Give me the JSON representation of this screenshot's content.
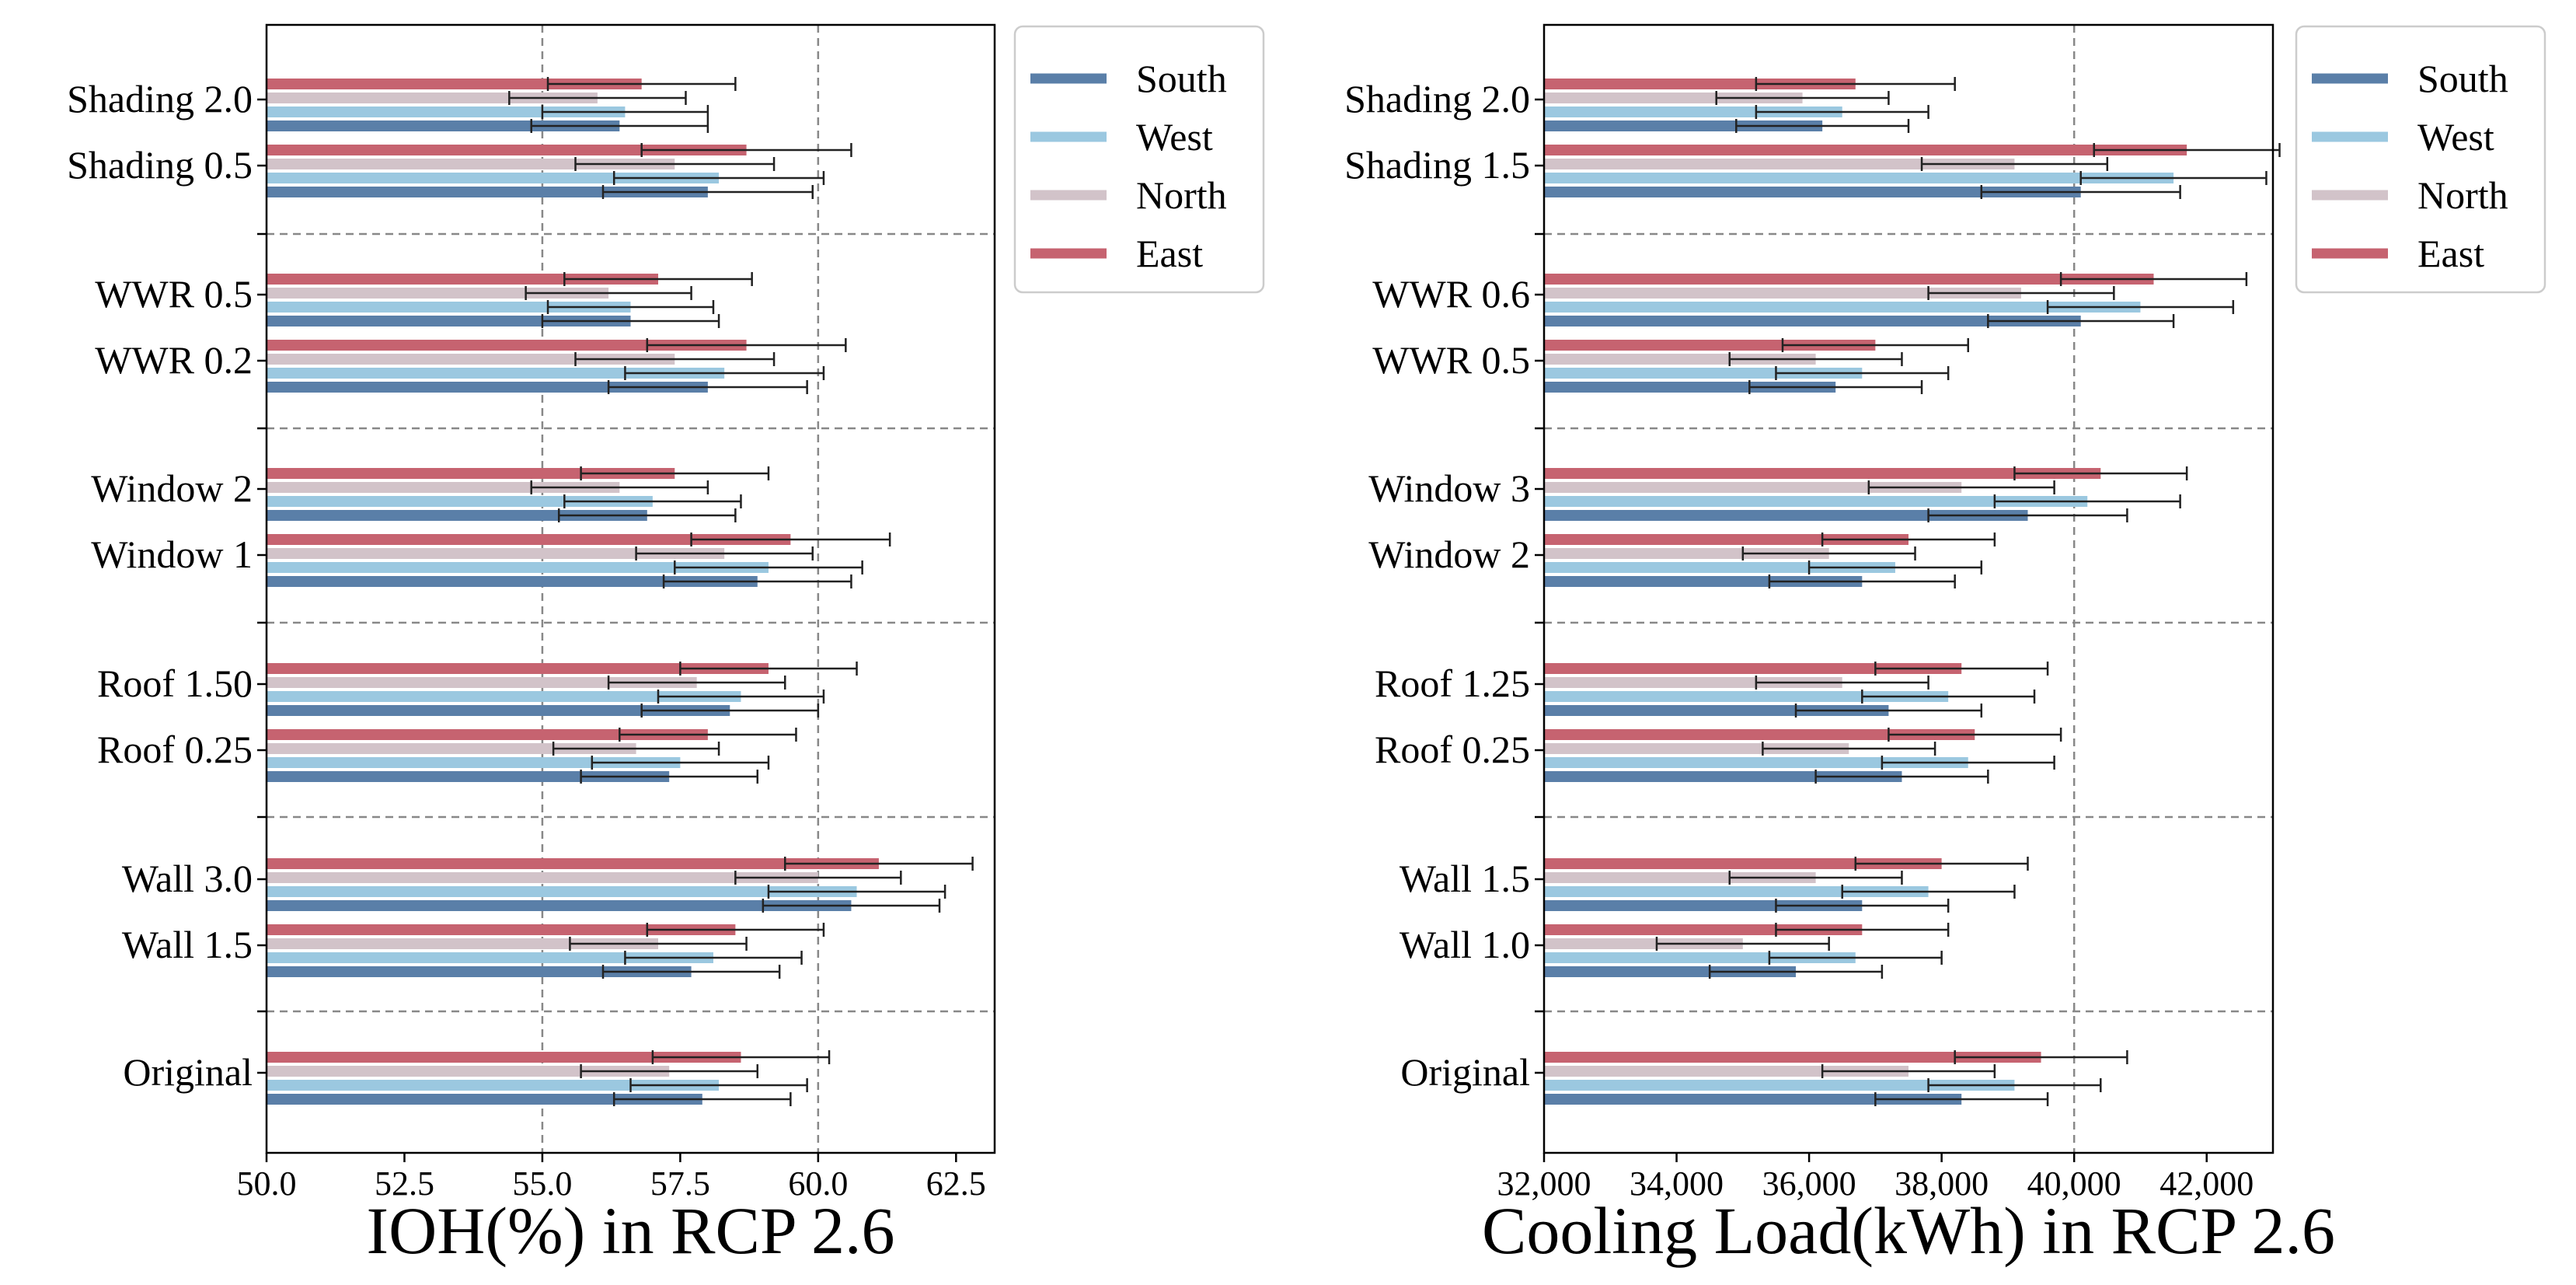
{
  "colors": {
    "South": "#5a7fa8",
    "West": "#9bc8e0",
    "North": "#d2c3c9",
    "East": "#c66370",
    "grid": "#888888",
    "errorbar": "#222222"
  },
  "chart_data": [
    {
      "type": "bar",
      "orientation": "horizontal",
      "title": "",
      "xlabel": "IOH(%) in RCP 2.6",
      "ylabel": "",
      "xlim": [
        50.0,
        63.2
      ],
      "xticks": [
        50.0,
        52.5,
        55.0,
        57.5,
        60.0,
        62.5
      ],
      "xtick_labels": [
        "50.0",
        "52.5",
        "55.0",
        "57.5",
        "60.0",
        "62.5"
      ],
      "vlines": [
        55.0,
        60.0
      ],
      "legend": [
        "South",
        "West",
        "North",
        "East"
      ],
      "legend_position": "top-right (outside)",
      "groups": [
        {
          "categories": [
            "Shading 2.0",
            "Shading 0.5"
          ],
          "series": {
            "South": [
              56.4,
              58.0
            ],
            "West": [
              56.5,
              58.2
            ],
            "North": [
              56.0,
              57.4
            ],
            "East": [
              56.8,
              58.7
            ]
          },
          "errors": {
            "South": [
              1.6,
              1.9
            ],
            "West": [
              1.5,
              1.9
            ],
            "North": [
              1.6,
              1.8
            ],
            "East": [
              1.7,
              1.9
            ]
          }
        },
        {
          "categories": [
            "WWR 0.5",
            "WWR 0.2"
          ],
          "series": {
            "South": [
              56.6,
              58.0
            ],
            "West": [
              56.6,
              58.3
            ],
            "North": [
              56.2,
              57.4
            ],
            "East": [
              57.1,
              58.7
            ]
          },
          "errors": {
            "South": [
              1.6,
              1.8
            ],
            "West": [
              1.5,
              1.8
            ],
            "North": [
              1.5,
              1.8
            ],
            "East": [
              1.7,
              1.8
            ]
          }
        },
        {
          "categories": [
            "Window 2",
            "Window 1"
          ],
          "series": {
            "South": [
              56.9,
              58.9
            ],
            "West": [
              57.0,
              59.1
            ],
            "North": [
              56.4,
              58.3
            ],
            "East": [
              57.4,
              59.5
            ]
          },
          "errors": {
            "South": [
              1.6,
              1.7
            ],
            "West": [
              1.6,
              1.7
            ],
            "North": [
              1.6,
              1.6
            ],
            "East": [
              1.7,
              1.8
            ]
          }
        },
        {
          "categories": [
            "Roof 1.50",
            "Roof 0.25"
          ],
          "series": {
            "South": [
              58.4,
              57.3
            ],
            "West": [
              58.6,
              57.5
            ],
            "North": [
              57.8,
              56.7
            ],
            "East": [
              59.1,
              58.0
            ]
          },
          "errors": {
            "South": [
              1.6,
              1.6
            ],
            "West": [
              1.5,
              1.6
            ],
            "North": [
              1.6,
              1.5
            ],
            "East": [
              1.6,
              1.6
            ]
          }
        },
        {
          "categories": [
            "Wall 3.0",
            "Wall 1.5"
          ],
          "series": {
            "South": [
              60.6,
              57.7
            ],
            "West": [
              60.7,
              58.1
            ],
            "North": [
              60.0,
              57.1
            ],
            "East": [
              61.1,
              58.5
            ]
          },
          "errors": {
            "South": [
              1.6,
              1.6
            ],
            "West": [
              1.6,
              1.6
            ],
            "North": [
              1.5,
              1.6
            ],
            "East": [
              1.7,
              1.6
            ]
          }
        },
        {
          "categories": [
            "Original"
          ],
          "series": {
            "South": [
              57.9
            ],
            "West": [
              58.2
            ],
            "North": [
              57.3
            ],
            "East": [
              58.6
            ]
          },
          "errors": {
            "South": [
              1.6
            ],
            "West": [
              1.6
            ],
            "North": [
              1.6
            ],
            "East": [
              1.6
            ]
          }
        }
      ]
    },
    {
      "type": "bar",
      "orientation": "horizontal",
      "title": "",
      "xlabel": "Cooling Load(kWh) in RCP 2.6",
      "ylabel": "",
      "xlim": [
        32000,
        43000
      ],
      "xticks": [
        32000,
        34000,
        36000,
        38000,
        40000,
        42000
      ],
      "xtick_labels": [
        "32,000",
        "34,000",
        "36,000",
        "38,000",
        "40,000",
        "42,000"
      ],
      "vlines": [
        40000
      ],
      "legend": [
        "South",
        "West",
        "North",
        "East"
      ],
      "legend_position": "top-right (outside)",
      "groups": [
        {
          "categories": [
            "Shading 2.0",
            "Shading 1.5"
          ],
          "series": {
            "South": [
              36200,
              40100
            ],
            "West": [
              36500,
              41500
            ],
            "North": [
              35900,
              39100
            ],
            "East": [
              36700,
              41700
            ]
          },
          "errors": {
            "South": [
              1300,
              1500
            ],
            "West": [
              1300,
              1400
            ],
            "North": [
              1300,
              1400
            ],
            "East": [
              1500,
              1400
            ]
          }
        },
        {
          "categories": [
            "WWR 0.6",
            "WWR 0.5"
          ],
          "series": {
            "South": [
              40100,
              36400
            ],
            "West": [
              41000,
              36800
            ],
            "North": [
              39200,
              36100
            ],
            "East": [
              41200,
              37000
            ]
          },
          "errors": {
            "South": [
              1400,
              1300
            ],
            "West": [
              1400,
              1300
            ],
            "North": [
              1400,
              1300
            ],
            "East": [
              1400,
              1400
            ]
          }
        },
        {
          "categories": [
            "Window 3",
            "Window 2"
          ],
          "series": {
            "South": [
              39300,
              36800
            ],
            "West": [
              40200,
              37300
            ],
            "North": [
              38300,
              36300
            ],
            "East": [
              40400,
              37500
            ]
          },
          "errors": {
            "South": [
              1500,
              1400
            ],
            "West": [
              1400,
              1300
            ],
            "North": [
              1400,
              1300
            ],
            "East": [
              1300,
              1300
            ]
          }
        },
        {
          "categories": [
            "Roof 1.25",
            "Roof 0.25"
          ],
          "series": {
            "South": [
              37200,
              37400
            ],
            "West": [
              38100,
              38400
            ],
            "North": [
              36500,
              36600
            ],
            "East": [
              38300,
              38500
            ]
          },
          "errors": {
            "South": [
              1400,
              1300
            ],
            "West": [
              1300,
              1300
            ],
            "North": [
              1300,
              1300
            ],
            "East": [
              1300,
              1300
            ]
          }
        },
        {
          "categories": [
            "Wall 1.5",
            "Wall 1.0"
          ],
          "series": {
            "South": [
              36800,
              35800
            ],
            "West": [
              37800,
              36700
            ],
            "North": [
              36100,
              35000
            ],
            "East": [
              38000,
              36800
            ]
          },
          "errors": {
            "South": [
              1300,
              1300
            ],
            "West": [
              1300,
              1300
            ],
            "North": [
              1300,
              1300
            ],
            "East": [
              1300,
              1300
            ]
          }
        },
        {
          "categories": [
            "Original"
          ],
          "series": {
            "South": [
              38300
            ],
            "West": [
              39100
            ],
            "North": [
              37500
            ],
            "East": [
              39500
            ]
          },
          "errors": {
            "South": [
              1300
            ],
            "West": [
              1300
            ],
            "North": [
              1300
            ],
            "East": [
              1300
            ]
          }
        }
      ]
    }
  ]
}
